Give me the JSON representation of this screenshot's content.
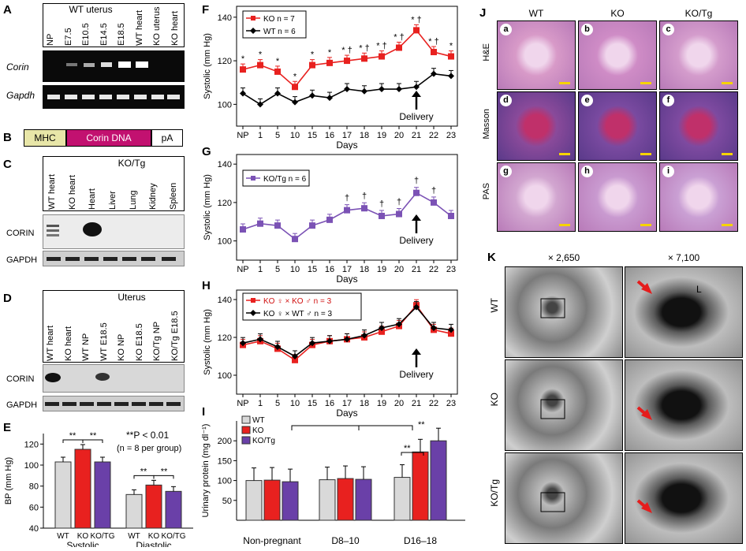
{
  "panelA": {
    "label": "A",
    "group_header": "WT uterus",
    "lanes": [
      "NP",
      "E7.5",
      "E10.5",
      "E14.5",
      "E18.5",
      "WT heart",
      "KO uterus",
      "KO heart"
    ],
    "rows": [
      "Corin",
      "Gapdh"
    ]
  },
  "panelB": {
    "label": "B",
    "segments": [
      "MHC",
      "Corin DNA",
      "pA"
    ],
    "colors": {
      "mhc": "#e8e6a8",
      "corin": "#c21170",
      "pa": "#ffffff"
    }
  },
  "panelC": {
    "label": "C",
    "lanes": [
      "WT heart",
      "KO heart",
      "Heart",
      "Liver",
      "Lung",
      "Kidney",
      "Spleen"
    ],
    "group_header": "KO/Tg",
    "rows": [
      "CORIN",
      "GAPDH"
    ]
  },
  "panelD": {
    "label": "D",
    "group_header": "Uterus",
    "lanes": [
      "WT heart",
      "KO heart",
      "WT NP",
      "WT E18.5",
      "KO NP",
      "KO E18.5",
      "KO/Tg NP",
      "KO/Tg E18.5"
    ],
    "rows": [
      "CORIN",
      "GAPDH"
    ]
  },
  "panelE": {
    "label": "E",
    "ylabel": "BP (mm Hg)",
    "yticks": [
      "40",
      "60",
      "80",
      "100",
      "120"
    ],
    "annotation_line1": "**P < 0.01",
    "annotation_line2": "(n = 8 per group)",
    "groups": [
      "Systolic",
      "Diastolic"
    ],
    "categories": [
      "WT",
      "KO",
      "KO/TG"
    ],
    "sig": "**"
  },
  "panelF": {
    "label": "F",
    "ylabel": "Systolic (mm Hg)",
    "xlabel": "Days",
    "legend_ko": "KO n = 7",
    "legend_wt": "WT n = 6",
    "delivery": "Delivery",
    "yticks": [
      "100",
      "120",
      "140"
    ]
  },
  "panelG": {
    "label": "G",
    "ylabel": "Systolic (mm Hg)",
    "xlabel": "Days",
    "legend": "KO/Tg n = 6",
    "delivery": "Delivery",
    "yticks": [
      "100",
      "120",
      "140"
    ]
  },
  "panelH": {
    "label": "H",
    "ylabel": "Systolic (mm Hg)",
    "xlabel": "Days",
    "legend1": "KO ♀ × KO ♂ n = 3",
    "legend2": "KO ♀ × WT ♂ n = 3",
    "delivery": "Delivery",
    "yticks": [
      "100",
      "120",
      "140"
    ]
  },
  "panelI": {
    "label": "I",
    "ylabel": "Urinary protein (mg dl⁻¹)",
    "yticks": [
      "50",
      "100",
      "150",
      "200"
    ],
    "legend": [
      "WT",
      "KO",
      "KO/Tg"
    ],
    "groups": [
      "Non-pregnant",
      "D8–10",
      "D16–18"
    ],
    "sig": "**"
  },
  "panelJ": {
    "label": "J",
    "columns": [
      "WT",
      "KO",
      "KO/Tg"
    ],
    "rows": [
      "H&E",
      "Masson",
      "PAS"
    ],
    "tiles": [
      "a",
      "b",
      "c",
      "d",
      "e",
      "f",
      "g",
      "h",
      "i"
    ]
  },
  "panelK": {
    "label": "K",
    "columns": [
      "× 2,650",
      "× 7,100"
    ],
    "rows": [
      "WT",
      "KO",
      "KO/Tg"
    ],
    "lumen_label": "L"
  },
  "chart_data": [
    {
      "type": "line",
      "panel": "F",
      "x": [
        "NP",
        "1",
        "5",
        "10",
        "15",
        "16",
        "17",
        "18",
        "19",
        "20",
        "21",
        "22",
        "23"
      ],
      "xlabel": "Days",
      "ylabel": "Systolic (mm Hg)",
      "ylim": [
        90,
        145
      ],
      "series": [
        {
          "name": "KO n = 7",
          "color": "#e8211f",
          "values": [
            116,
            118,
            115,
            108,
            118,
            119,
            120,
            121,
            122,
            126,
            134,
            124,
            122
          ]
        },
        {
          "name": "WT n = 6",
          "color": "#000000",
          "values": [
            105,
            100,
            105,
            101,
            104,
            103,
            107,
            106,
            107,
            107,
            108,
            114,
            113
          ]
        }
      ]
    },
    {
      "type": "line",
      "panel": "G",
      "x": [
        "NP",
        "1",
        "5",
        "10",
        "15",
        "16",
        "17",
        "18",
        "19",
        "20",
        "21",
        "22",
        "23"
      ],
      "xlabel": "Days",
      "ylabel": "Systolic (mm Hg)",
      "ylim": [
        90,
        145
      ],
      "series": [
        {
          "name": "KO/Tg n = 6",
          "color": "#7b52b5",
          "values": [
            106,
            109,
            108,
            101,
            108,
            111,
            116,
            117,
            113,
            114,
            125,
            120,
            113
          ]
        }
      ]
    },
    {
      "type": "line",
      "panel": "H",
      "x": [
        "NP",
        "1",
        "5",
        "10",
        "15",
        "16",
        "17",
        "18",
        "19",
        "20",
        "21",
        "22",
        "23"
      ],
      "xlabel": "Days",
      "ylabel": "Systolic (mm Hg)",
      "ylim": [
        90,
        145
      ],
      "series": [
        {
          "name": "KO ♀ × KO ♂ n = 3",
          "color": "#e8211f",
          "values": [
            116,
            118,
            114,
            108,
            116,
            118,
            119,
            120,
            123,
            126,
            137,
            124,
            122
          ]
        },
        {
          "name": "KO ♀ × WT ♂ n = 3",
          "color": "#000000",
          "values": [
            117,
            119,
            115,
            110,
            117,
            118,
            119,
            121,
            125,
            127,
            136,
            125,
            124
          ]
        }
      ]
    },
    {
      "type": "bar",
      "panel": "E",
      "categories": [
        "Systolic",
        "Diastolic"
      ],
      "ylabel": "BP (mm Hg)",
      "ylim": [
        40,
        130
      ],
      "series": [
        {
          "name": "WT",
          "color": "#d9d9d9",
          "values": [
            103,
            72
          ]
        },
        {
          "name": "KO",
          "color": "#e8211f",
          "values": [
            115,
            81
          ]
        },
        {
          "name": "KO/TG",
          "color": "#6a40a8",
          "values": [
            103,
            75
          ]
        }
      ]
    },
    {
      "type": "bar",
      "panel": "I",
      "categories": [
        "Non-pregnant",
        "D8–10",
        "D16–18"
      ],
      "ylabel": "Urinary protein (mg dl⁻¹)",
      "ylim": [
        0,
        250
      ],
      "series": [
        {
          "name": "WT",
          "color": "#d9d9d9",
          "values": [
            100,
            102,
            108
          ]
        },
        {
          "name": "KO",
          "color": "#e8211f",
          "values": [
            101,
            105,
            172
          ]
        },
        {
          "name": "KO/Tg",
          "color": "#6a40a8",
          "values": [
            97,
            103,
            200
          ]
        }
      ]
    }
  ]
}
